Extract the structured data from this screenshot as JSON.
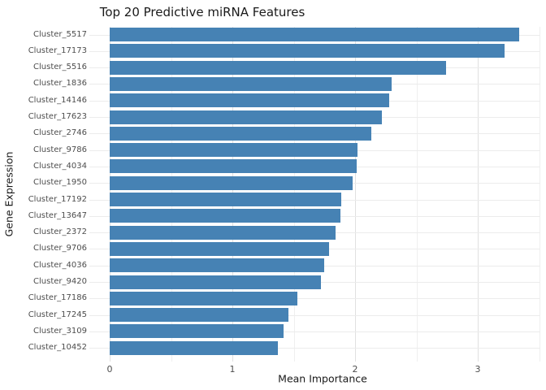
{
  "title": "Top 20 Predictive miRNA Features",
  "xlabel": "Mean Importance",
  "ylabel": "Gene Expression",
  "chart_data": {
    "type": "bar",
    "orientation": "horizontal",
    "title": "Top 20 Predictive miRNA Features",
    "xlabel": "Mean Importance",
    "ylabel": "Gene Expression",
    "categories": [
      "Cluster_5517",
      "Cluster_17173",
      "Cluster_5516",
      "Cluster_1836",
      "Cluster_14146",
      "Cluster_17623",
      "Cluster_2746",
      "Cluster_9786",
      "Cluster_4034",
      "Cluster_1950",
      "Cluster_17192",
      "Cluster_13647",
      "Cluster_2372",
      "Cluster_9706",
      "Cluster_4036",
      "Cluster_9420",
      "Cluster_17186",
      "Cluster_17245",
      "Cluster_3109",
      "Cluster_10452"
    ],
    "values": [
      3.34,
      3.22,
      2.74,
      2.3,
      2.28,
      2.22,
      2.13,
      2.02,
      2.01,
      1.98,
      1.89,
      1.88,
      1.84,
      1.79,
      1.75,
      1.72,
      1.53,
      1.46,
      1.42,
      1.37
    ],
    "xlim": [
      -0.17,
      3.51
    ],
    "xticks": [
      0,
      1,
      2,
      3
    ],
    "minor_xticks": [
      0.5,
      1.5,
      2.5,
      3.5
    ],
    "grid": true,
    "legend": false,
    "bar_color": "#4682B4",
    "grid_major_color": "#e0e0e0",
    "grid_minor_color": "#efefef",
    "background_color": "#ffffff"
  }
}
